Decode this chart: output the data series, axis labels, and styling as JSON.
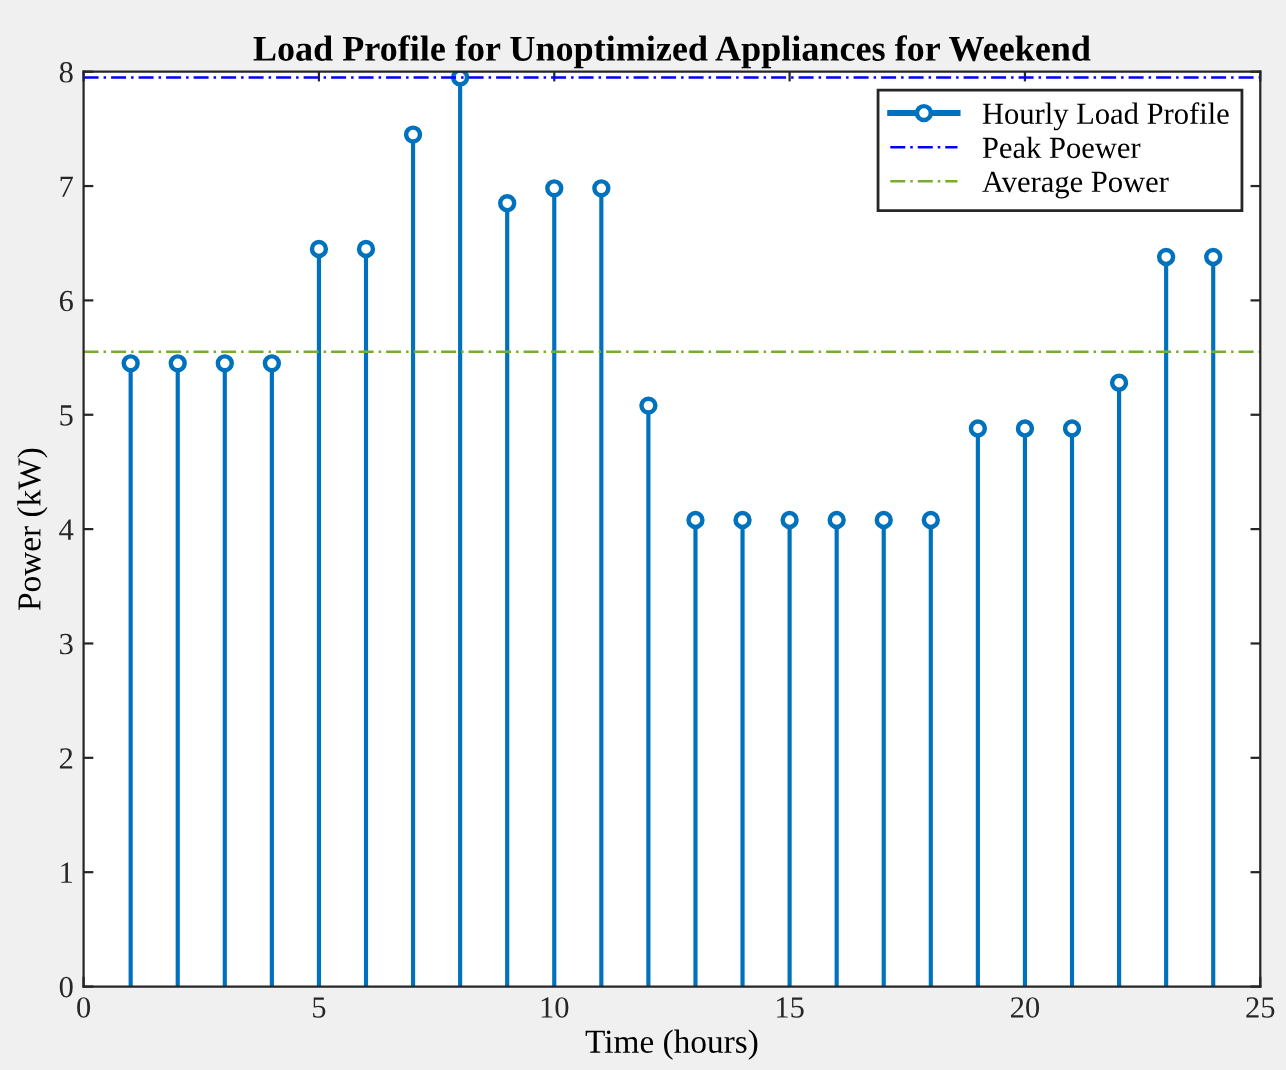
{
  "chart_data": {
    "type": "lollipop",
    "title": "Load Profile for Unoptimized Appliances for Weekend",
    "xlabel": "Time (hours)",
    "ylabel": "Power (kW)",
    "x": [
      1,
      2,
      3,
      4,
      5,
      6,
      7,
      8,
      9,
      10,
      11,
      12,
      13,
      14,
      15,
      16,
      17,
      18,
      19,
      20,
      21,
      22,
      23,
      24
    ],
    "series": [
      {
        "name": "Hourly Load Profile",
        "color": "#0072bd",
        "marker": "circle",
        "values": [
          5.45,
          5.45,
          5.45,
          5.45,
          6.45,
          6.45,
          7.45,
          7.95,
          6.85,
          6.98,
          6.98,
          5.08,
          4.08,
          4.08,
          4.08,
          4.08,
          4.08,
          4.08,
          4.88,
          4.88,
          4.88,
          5.28,
          6.38,
          6.38
        ]
      }
    ],
    "ref_lines": [
      {
        "axis": "y",
        "value": 7.95,
        "label": "Peak Poewer",
        "color": "#0000ff",
        "line_style": "dashdot"
      },
      {
        "axis": "y",
        "value": 5.55,
        "label": "Average Power",
        "color": "#77ac30",
        "line_style": "dashdot"
      }
    ],
    "xlim": [
      0,
      25
    ],
    "xticks": [
      0,
      5,
      10,
      15,
      20,
      25
    ],
    "ylim": [
      0,
      8
    ],
    "yticks": [
      0,
      1,
      2,
      3,
      4,
      5,
      6,
      7,
      8
    ],
    "legend": "top right"
  }
}
